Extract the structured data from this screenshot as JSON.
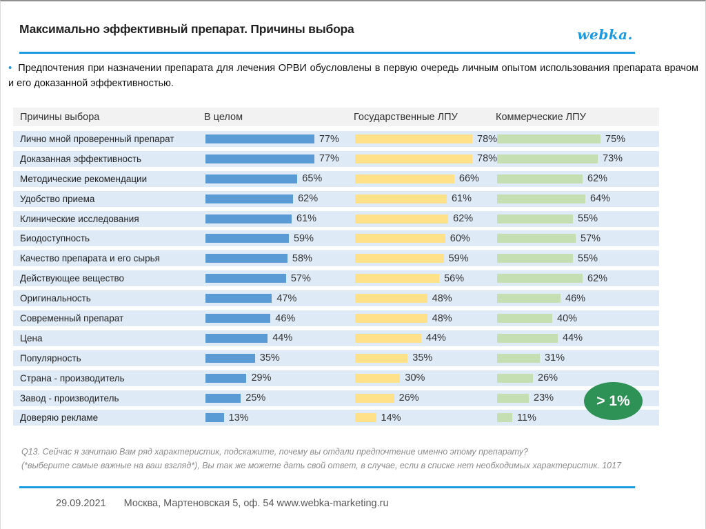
{
  "header": {
    "title": "Максимально эффективный препарат. Причины выбора",
    "logo": "webka."
  },
  "intro": {
    "bullet": "•",
    "text": "Предпочтения при назначении препарата для лечения ОРВИ обусловлены в первую очередь личным опытом использования препарата врачом и его доказанной эффективностью."
  },
  "chart_data": {
    "type": "bar",
    "orientation": "horizontal",
    "title": "Максимально эффективный препарат. Причины выбора",
    "row_header": "Причины выбора",
    "columns": [
      "В целом",
      "Государственные ЛПУ",
      "Коммерческие ЛПУ"
    ],
    "categories": [
      "Лично мной проверенный препарат",
      "Доказанная эффективность",
      "Методические рекомендации",
      "Удобство приема",
      "Клинические исследования",
      "Биодоступность",
      "Качество препарата и его сырья",
      "Действующее вещество",
      "Оригинальность",
      "Современный препарат",
      "Цена",
      "Популярность",
      "Страна - производитель",
      "Завод - производитель",
      "Доверяю рекламе"
    ],
    "series": [
      {
        "name": "В целом",
        "color": "#5b9bd5",
        "values": [
          77,
          77,
          65,
          62,
          61,
          59,
          58,
          57,
          47,
          46,
          44,
          35,
          29,
          25,
          13
        ]
      },
      {
        "name": "Государственные ЛПУ",
        "color": "#ffe18a",
        "values": [
          78,
          78,
          66,
          61,
          62,
          60,
          59,
          56,
          48,
          48,
          44,
          35,
          30,
          26,
          14
        ]
      },
      {
        "name": "Коммерческие ЛПУ",
        "color": "#c5dfb3",
        "values": [
          75,
          73,
          62,
          64,
          55,
          57,
          55,
          62,
          46,
          40,
          44,
          31,
          26,
          23,
          11
        ]
      }
    ],
    "value_suffix": "%",
    "xlim": [
      0,
      100
    ],
    "grid": false,
    "legend_position": "column-headers",
    "annotation": "> 1%"
  },
  "annotation": {
    "text": "> 1%",
    "color": "#2e9156"
  },
  "footnote": {
    "line1": "Q13. Сейчас я зачитаю Вам ряд характеристик, подскажите, почему вы отдали предпочтение именно этому препарату?",
    "line2": "(*выберите самые важные на ваш взгляд*), Вы так же можете дать свой ответ, в случае, если в списке нет необходимых характеристик. 1017"
  },
  "footer": {
    "date": "29.09.2021",
    "address": "Москва, Мартеновская 5, оф. 54 www.webka-marketing.ru"
  }
}
